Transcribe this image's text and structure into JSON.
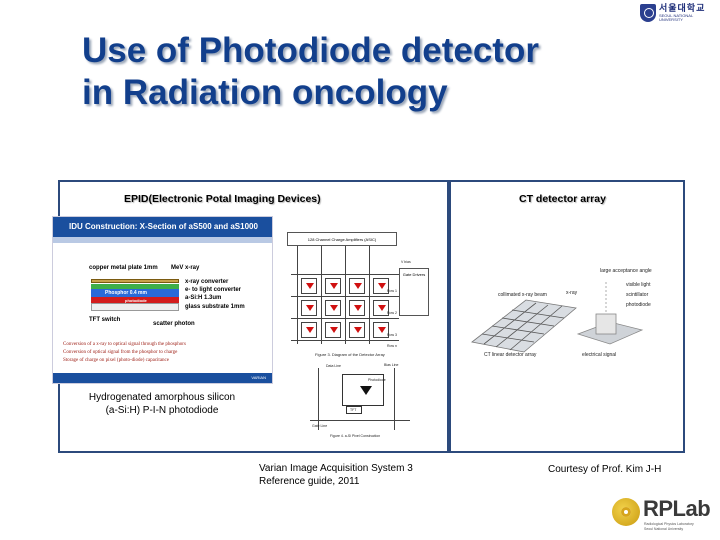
{
  "logo": {
    "korean": "서울대학교",
    "english": "SEOUL NATIONAL UNIVERSITY"
  },
  "title": {
    "line1": "Use of Photodiode detector",
    "line2": "in Radiation oncology"
  },
  "left_panel": {
    "heading": "EPID(Electronic Potal Imaging Devices)",
    "idu": {
      "header": "IDU Construction: X-Section of aS500 and aS1000",
      "labels": {
        "copper": "copper metal plate 1mm",
        "mev": "MeV x-ray",
        "phosphor": "Phosphor 0.4 mm",
        "xray_conv": "x-ray converter",
        "e_light": "e- to light converter",
        "asi": "a-Si:H 1.3um",
        "glass": "glass substrate 1mm",
        "tft": "TFT switch",
        "scatter": "scatter photon",
        "photodiode": "photodiode"
      },
      "bullets": [
        "Conversion of a x-ray to optical signal through the phosphors",
        "Conversion of optical signal from the phosphor to charge",
        "Storage of charge on pixel (photo-diode) capacitance"
      ],
      "footer": "VARIAN"
    },
    "caption_line1": "Hydrogenated amorphous silicon",
    "caption_line2": "(a-Si:H) P-I-N photodiode",
    "circuit": {
      "asic_label": "128 Channel Charge Amplifiers (ASIC)",
      "gate_label": "Gate Drivers",
      "vbias": "V bias",
      "row_labels": [
        "Row 1",
        "Row 2",
        "Row 3",
        "Row n"
      ],
      "caption": "Figure 3.  Diagram of the Detector Array"
    },
    "pixel": {
      "bias_line": "Bias Line",
      "data_line": "Data Line",
      "photodiode": "Photodiode",
      "tft": "TFT",
      "gate_line": "Gate Line",
      "caption": "Figure 4.  a-Si Pixel Construction"
    }
  },
  "right_panel": {
    "heading": "CT detector array",
    "figure": {
      "large_angle": "large acceptance angle",
      "visible_light": "visible light",
      "scintillator": "scintillator",
      "photodiode": "photodiode",
      "collimated": "collimated x-ray beam",
      "xray": "x-ray",
      "ct_linear": "CT linear detector array",
      "electrical": "electrical signal"
    }
  },
  "reference_left_line1": "Varian Image Acquisition System 3",
  "reference_left_line2": "Reference guide, 2011",
  "reference_right": "Courtesy of Prof. Kim J-H",
  "rplab": {
    "name": "RPLab",
    "sub1": "Radiological Physics Laboratory",
    "sub2": "Seoul National University"
  },
  "colors": {
    "title": "#123f8c",
    "panel_border": "#2c4a7c",
    "idu_header": "#1a4f9e"
  }
}
